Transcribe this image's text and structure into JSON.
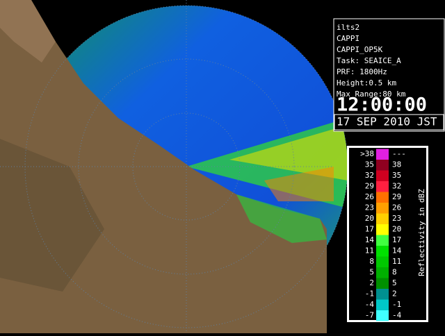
{
  "info": {
    "lines": [
      "ilts2",
      "CAPPI",
      "CAPPI_OP5K",
      "Task: SEAICE_A",
      "PRF: 1800Hz",
      "Height:0.5 km",
      "Max Range:80 km"
    ],
    "time": "12:00:00",
    "date": "17 SEP 2010 JST"
  },
  "legend": {
    "title": "Reflectivity in dBZ",
    "rows": [
      {
        "low": ">38",
        "high": "---",
        "color": "#e020e0"
      },
      {
        "low": "35",
        "high": "38",
        "color": "#900020"
      },
      {
        "low": "32",
        "high": "35",
        "color": "#d00020"
      },
      {
        "low": "29",
        "high": "32",
        "color": "#ff2040"
      },
      {
        "low": "26",
        "high": "29",
        "color": "#ff7000"
      },
      {
        "low": "23",
        "high": "26",
        "color": "#ffa000"
      },
      {
        "low": "20",
        "high": "23",
        "color": "#ffd000"
      },
      {
        "low": "17",
        "high": "20",
        "color": "#ffff00"
      },
      {
        "low": "14",
        "high": "17",
        "color": "#40ff40"
      },
      {
        "low": "11",
        "high": "14",
        "color": "#00e000"
      },
      {
        "low": "8",
        "high": "11",
        "color": "#00c800"
      },
      {
        "low": "5",
        "high": "8",
        "color": "#00b000"
      },
      {
        "low": "2",
        "high": "5",
        "color": "#009000"
      },
      {
        "low": "-1",
        "high": "2",
        "color": "#009090"
      },
      {
        "low": "-4",
        "high": "-1",
        "color": "#00c8c8"
      },
      {
        "low": "-7",
        "high": "-4",
        "color": "#40ffff"
      }
    ]
  }
}
